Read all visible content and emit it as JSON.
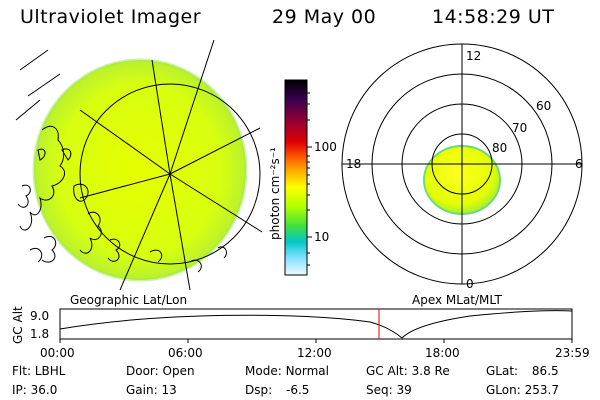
{
  "header": {
    "title": "Ultraviolet Imager",
    "date": "29 May 00",
    "time": "14:58:29 UT"
  },
  "left_panel": {
    "label": "Geographic Lat/Lon"
  },
  "right_panel": {
    "label": "Apex MLat/MLT",
    "mlt_labels": {
      "top": "12",
      "left": "18",
      "right": "6",
      "bottom": "0"
    },
    "lat_labels": [
      "60",
      "70",
      "80"
    ]
  },
  "colorbar": {
    "unit_label": "photon cm⁻²s⁻¹",
    "tick_high": "100",
    "tick_low": "10",
    "colors": [
      "#000000",
      "#3a0050",
      "#9a0030",
      "#e00000",
      "#ff6000",
      "#ffb000",
      "#ffff00",
      "#b0ff00",
      "#40e040",
      "#00c8c8",
      "#80e0ff",
      "#e8f8ff"
    ]
  },
  "orbit": {
    "y_label": "GC Alt",
    "y_ticks": [
      "9.0",
      "1.8"
    ],
    "x_ticks": [
      "00:00",
      "06:00",
      "12:00",
      "18:00",
      "23:59"
    ],
    "current_marker_time": "14:58"
  },
  "info": {
    "flt_label": "Flt:",
    "flt_value": "LBHL",
    "ip_label": "IP:",
    "ip_value": "36.0",
    "door_label": "Door:",
    "door_value": "Open",
    "gain_label": "Gain:",
    "gain_value": "13",
    "mode_label": "Mode:",
    "mode_value": "Normal",
    "dsp_label": "Dsp:",
    "dsp_value": "-6.5",
    "gcalt_label": "GC Alt:",
    "gcalt_value": "3.8 Re",
    "seq_label": "Seq:",
    "seq_value": "39",
    "glat_label": "GLat:",
    "glat_value": "86.5",
    "glon_label": "GLon:",
    "glon_value": "253.7"
  }
}
